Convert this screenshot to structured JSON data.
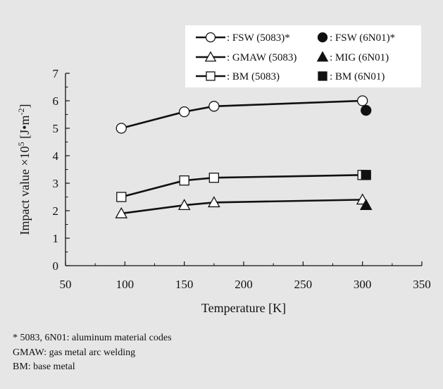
{
  "chart_data": {
    "type": "line",
    "xlabel": "Temperature [K]",
    "ylabel": "Impact value ×10",
    "ylabel_exp": "5",
    "ylabel_unit": " [J•m",
    "ylabel_unit_exp": "-2",
    "ylabel_unit_end": "]",
    "xlim": [
      50,
      350
    ],
    "ylim": [
      0,
      7
    ],
    "xticks": [
      50,
      100,
      150,
      200,
      250,
      300,
      350
    ],
    "yticks": [
      0,
      1,
      2,
      3,
      4,
      5,
      6,
      7
    ],
    "grid": false,
    "legend_position": "top-right",
    "series": [
      {
        "name": "FSW (5083)*",
        "legend_label": "FSW (5083)*",
        "marker": "circle-open",
        "line": true,
        "x": [
          97,
          150,
          175,
          300
        ],
        "y": [
          5.0,
          5.6,
          5.8,
          6.0
        ]
      },
      {
        "name": "GMAW (5083)",
        "legend_label": "GMAW (5083)",
        "marker": "triangle-open",
        "line": true,
        "x": [
          97,
          150,
          175,
          300
        ],
        "y": [
          1.9,
          2.2,
          2.3,
          2.4
        ]
      },
      {
        "name": "BM (5083)",
        "legend_label": "BM (5083)",
        "marker": "square-open",
        "line": true,
        "x": [
          97,
          150,
          175,
          300
        ],
        "y": [
          2.5,
          3.1,
          3.2,
          3.3
        ]
      },
      {
        "name": "FSW (6N01)*",
        "legend_label": "FSW (6N01)*",
        "marker": "circle-filled",
        "line": false,
        "x": [
          303
        ],
        "y": [
          5.65
        ]
      },
      {
        "name": "MIG (6N01)",
        "legend_label": "MIG (6N01)",
        "marker": "triangle-filled",
        "line": false,
        "x": [
          303
        ],
        "y": [
          2.2
        ]
      },
      {
        "name": "BM (6N01)",
        "legend_label": "BM (6N01)",
        "marker": "square-filled",
        "line": false,
        "x": [
          303
        ],
        "y": [
          3.3
        ]
      }
    ],
    "legend_separator": ": "
  },
  "footnotes": [
    "* 5083, 6N01: aluminum material codes",
    "GMAW: gas metal arc welding",
    "BM: base metal"
  ]
}
